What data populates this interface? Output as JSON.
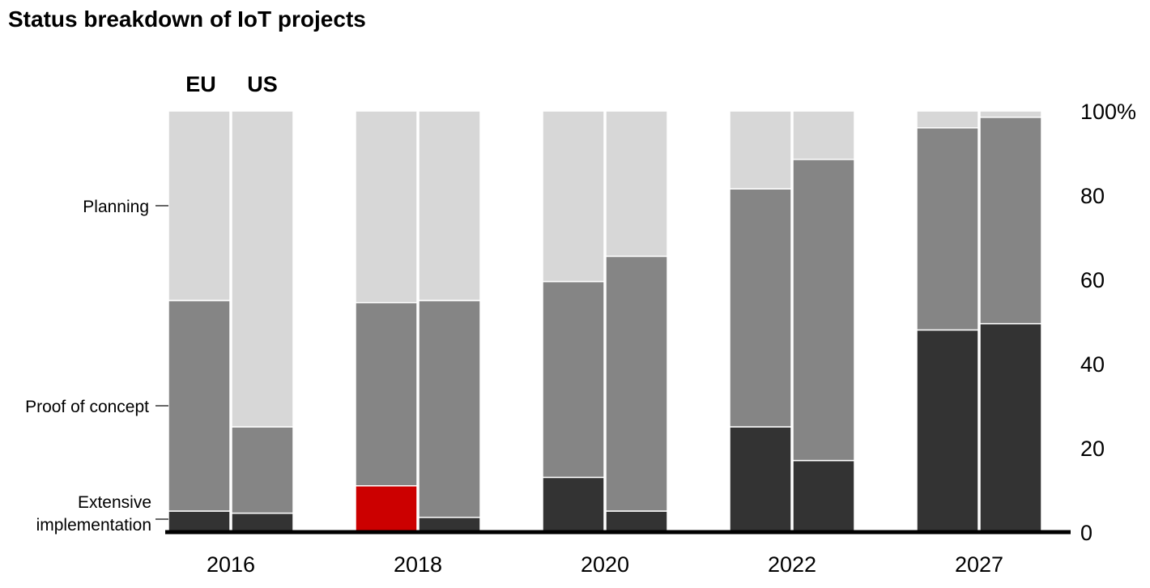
{
  "chart_data": {
    "type": "bar",
    "stacked": true,
    "title": "Status breakdown of IoT projects",
    "years": [
      "2016",
      "2018",
      "2020",
      "2022",
      "2027"
    ],
    "regions": [
      "EU",
      "US"
    ],
    "series": [
      {
        "name": "Extensive implementation",
        "color": "#333333",
        "values": {
          "EU": [
            5,
            11,
            13,
            25,
            48
          ],
          "US": [
            4.5,
            3.5,
            5,
            17,
            49.5
          ]
        }
      },
      {
        "name": "Proof of concept",
        "color": "#858585",
        "values": {
          "EU": [
            50,
            43.5,
            46.5,
            56.5,
            48
          ],
          "US": [
            20.5,
            51.5,
            60.5,
            71.5,
            49
          ]
        }
      },
      {
        "name": "Planning",
        "color": "#d7d7d7",
        "values": {
          "EU": [
            45,
            45.5,
            40.5,
            18.5,
            4
          ],
          "US": [
            75,
            45,
            34.5,
            11.5,
            1.5
          ]
        }
      }
    ],
    "highlight": {
      "series": "Extensive implementation",
      "region": "EU",
      "year": "2018",
      "color": "#cc0000"
    },
    "category_labels": [
      {
        "text": "Planning"
      },
      {
        "text": "Proof of concept"
      },
      {
        "text_lines": [
          "Extensive",
          "implementation"
        ]
      }
    ],
    "y_ticks": [
      "0",
      "20",
      "40",
      "60",
      "80",
      "100%"
    ],
    "y_tick_values": [
      0,
      20,
      40,
      60,
      80,
      100
    ],
    "ylim": [
      0,
      100
    ],
    "y_axis_position": "right",
    "grid": false,
    "xlabel": "",
    "ylabel": ""
  }
}
